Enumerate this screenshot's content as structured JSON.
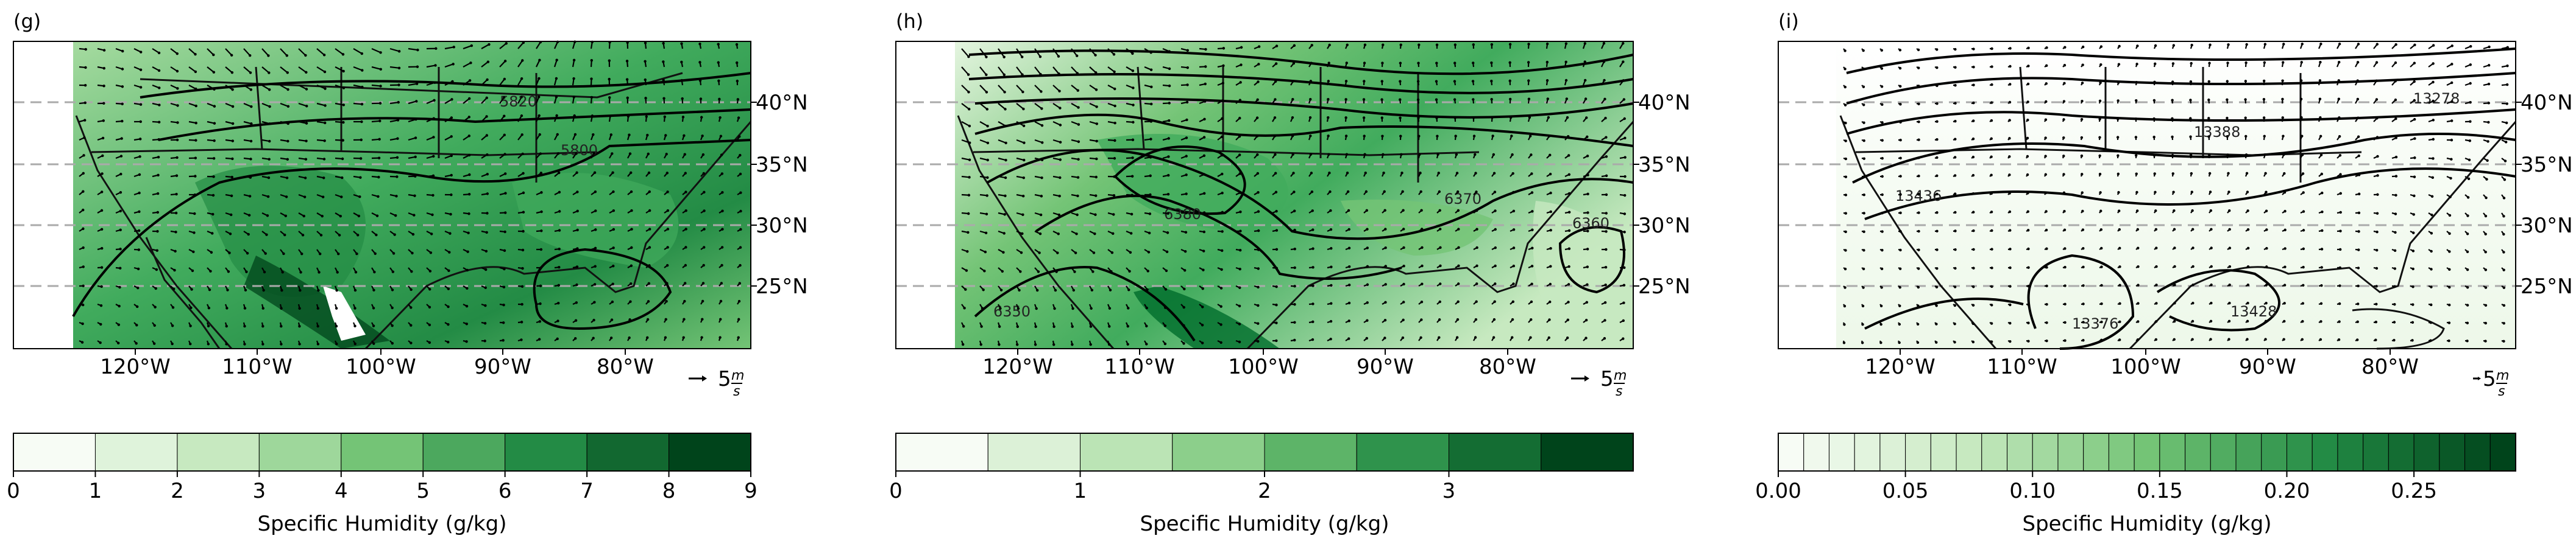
{
  "panels": [
    {
      "id": "g",
      "label": "(g)",
      "lat_labels": [
        "40°N",
        "35°N",
        "30°N",
        "25°N"
      ],
      "lon_labels": [
        "120°W",
        "110°W",
        "100°W",
        "90°W",
        "80°W"
      ],
      "wind_reference": "5",
      "wind_reference_unit": "m/s",
      "contour_labels": [
        "5820",
        "5800"
      ],
      "colorbar": {
        "label": "Specific Humidity (g/kg)",
        "ticks": [
          "0",
          "1",
          "2",
          "3",
          "4",
          "5",
          "6",
          "7",
          "8",
          "9"
        ],
        "bins": 9,
        "range": [
          0,
          9
        ]
      }
    },
    {
      "id": "h",
      "label": "(h)",
      "lat_labels": [
        "40°N",
        "35°N",
        "30°N",
        "25°N"
      ],
      "lon_labels": [
        "120°W",
        "110°W",
        "100°W",
        "90°W",
        "80°W"
      ],
      "wind_reference": "5",
      "wind_reference_unit": "m/s",
      "contour_labels": [
        "6380",
        "6370",
        "6360",
        "6350"
      ],
      "colorbar": {
        "label": "Specific Humidity (g/kg)",
        "ticks": [
          "0",
          "1",
          "2",
          "3"
        ],
        "bins": 8,
        "range": [
          0,
          4
        ]
      }
    },
    {
      "id": "i",
      "label": "(i)",
      "lat_labels": [
        "40°N",
        "35°N",
        "30°N",
        "25°N"
      ],
      "lon_labels": [
        "120°W",
        "110°W",
        "100°W",
        "90°W",
        "80°W"
      ],
      "wind_reference": "5",
      "wind_reference_unit": "m/s",
      "contour_labels": [
        "13436",
        "13428",
        "13388",
        "13376",
        "13278"
      ],
      "colorbar": {
        "label": "Specific Humidity (g/kg)",
        "ticks": [
          "0.00",
          "0.05",
          "0.10",
          "0.15",
          "0.20",
          "0.25"
        ],
        "bins": 29,
        "range": [
          0,
          0.29
        ]
      }
    }
  ],
  "colors": {
    "greens_light": "#f7fcf5",
    "greens_dark": "#00441b",
    "grid": "#aaaaaa",
    "contour": "#111111"
  }
}
